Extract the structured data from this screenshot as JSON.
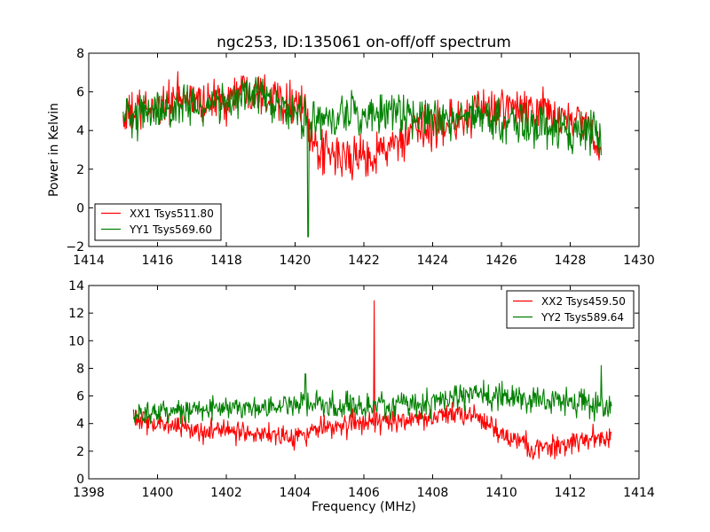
{
  "colors": {
    "xx": "#ff0000",
    "yy": "#008000",
    "frame": "#000000",
    "background": "#ffffff"
  },
  "chart_data": [
    {
      "type": "line",
      "title": "ngc253, ID:135061 on-off/off spectrum",
      "xlabel": "",
      "ylabel": "Power in Kelvin",
      "xlim": [
        1414,
        1430
      ],
      "ylim": [
        -2,
        8
      ],
      "xticks": [
        "1414",
        "1416",
        "1418",
        "1420",
        "1422",
        "1424",
        "1426",
        "1428",
        "1430"
      ],
      "yticks": [
        "−2",
        "0",
        "2",
        "4",
        "6",
        "8"
      ],
      "grid": false,
      "legend_position": "lower-left",
      "series": [
        {
          "name": "XX1 Tsys511.80",
          "color": "#ff0000",
          "x_range": [
            1415.0,
            1428.9
          ],
          "noise": 0.8,
          "spikes": [],
          "x": [
            1415.0,
            1415.5,
            1416.0,
            1416.5,
            1417.0,
            1417.5,
            1418.0,
            1418.5,
            1419.0,
            1419.5,
            1420.0,
            1420.3,
            1420.5,
            1421.0,
            1421.5,
            1422.0,
            1422.5,
            1423.0,
            1423.5,
            1424.0,
            1424.5,
            1425.0,
            1425.5,
            1426.0,
            1426.5,
            1427.0,
            1427.5,
            1428.0,
            1428.5,
            1428.9
          ],
          "y": [
            4.6,
            5.0,
            5.3,
            5.6,
            5.6,
            5.5,
            5.6,
            6.2,
            6.1,
            5.7,
            5.5,
            5.2,
            3.0,
            2.7,
            2.6,
            2.6,
            3.0,
            3.3,
            3.8,
            4.2,
            4.5,
            4.7,
            5.0,
            5.2,
            5.1,
            5.0,
            4.8,
            4.6,
            4.2,
            3.0
          ]
        },
        {
          "name": "YY1 Tsys569.60",
          "color": "#008000",
          "x_range": [
            1415.0,
            1428.9
          ],
          "noise": 0.75,
          "spikes": [
            [
              1420.38,
              -1.5
            ]
          ],
          "x": [
            1415.0,
            1415.5,
            1416.0,
            1416.5,
            1417.0,
            1417.5,
            1418.0,
            1418.5,
            1419.0,
            1419.5,
            1420.0,
            1420.5,
            1421.0,
            1421.5,
            1422.0,
            1422.5,
            1423.0,
            1423.5,
            1424.0,
            1424.5,
            1425.0,
            1425.5,
            1426.0,
            1426.5,
            1427.0,
            1427.5,
            1428.0,
            1428.5,
            1428.9
          ],
          "y": [
            4.8,
            4.9,
            5.0,
            5.1,
            5.2,
            5.4,
            5.5,
            5.9,
            5.6,
            5.2,
            5.0,
            4.4,
            4.6,
            4.8,
            4.8,
            4.9,
            4.9,
            4.8,
            4.7,
            4.7,
            4.8,
            4.7,
            4.5,
            4.3,
            4.2,
            4.1,
            4.0,
            4.1,
            4.0
          ]
        }
      ]
    },
    {
      "type": "line",
      "title": "",
      "xlabel": "Frequency (MHz)",
      "ylabel": "",
      "xlim": [
        1398,
        1414
      ],
      "ylim": [
        0,
        14
      ],
      "xticks": [
        "1398",
        "1400",
        "1402",
        "1404",
        "1406",
        "1408",
        "1410",
        "1412",
        "1414"
      ],
      "yticks": [
        "0",
        "2",
        "4",
        "6",
        "8",
        "10",
        "12",
        "14"
      ],
      "grid": false,
      "legend_position": "upper-right",
      "series": [
        {
          "name": "XX2 Tsys459.50",
          "color": "#ff0000",
          "x_range": [
            1399.3,
            1413.2
          ],
          "noise": 0.6,
          "spikes": [
            [
              1406.3,
              12.9
            ]
          ],
          "x": [
            1399.3,
            1400.0,
            1401.0,
            1402.0,
            1403.0,
            1404.0,
            1404.5,
            1405.0,
            1406.0,
            1407.0,
            1408.0,
            1408.5,
            1409.0,
            1409.5,
            1410.0,
            1410.5,
            1411.0,
            1411.5,
            1412.0,
            1412.5,
            1413.2
          ],
          "y": [
            4.5,
            4.0,
            3.6,
            3.5,
            3.3,
            3.1,
            3.4,
            3.9,
            4.0,
            4.2,
            4.4,
            4.8,
            4.6,
            4.2,
            3.2,
            2.6,
            2.2,
            2.3,
            2.6,
            2.9,
            3.0
          ]
        },
        {
          "name": "YY2 Tsys589.64",
          "color": "#008000",
          "x_range": [
            1399.3,
            1413.2
          ],
          "noise": 0.65,
          "spikes": [
            [
              1404.3,
              7.6
            ],
            [
              1412.9,
              8.2
            ]
          ],
          "x": [
            1399.3,
            1400.0,
            1401.0,
            1402.0,
            1403.0,
            1404.0,
            1405.0,
            1406.0,
            1407.0,
            1408.0,
            1408.5,
            1409.0,
            1409.5,
            1410.0,
            1410.5,
            1411.0,
            1411.5,
            1412.0,
            1412.5,
            1413.2
          ],
          "y": [
            4.6,
            4.8,
            5.0,
            5.2,
            5.3,
            5.4,
            5.4,
            5.3,
            5.4,
            5.5,
            5.9,
            6.2,
            6.1,
            6.0,
            5.9,
            5.7,
            5.6,
            5.5,
            5.4,
            5.3
          ]
        }
      ]
    }
  ]
}
